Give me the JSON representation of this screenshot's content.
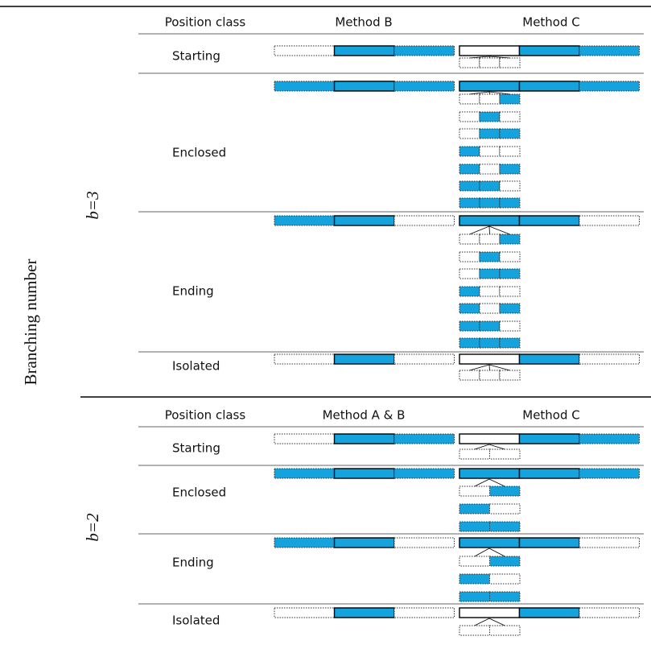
{
  "axis_label": "Branching number",
  "sections": [
    {
      "label": "b=3",
      "header": {
        "position_class": "Position class",
        "method_1": "Method B",
        "method_2": "Method C"
      },
      "rows": [
        "Starting",
        "Enclosed",
        "Ending",
        "Isolated"
      ]
    },
    {
      "label": "b=2",
      "header": {
        "position_class": "Position class",
        "method_1": "Method A & B",
        "method_2": "Method C"
      },
      "rows": [
        "Starting",
        "Enclosed",
        "Ending",
        "Isolated"
      ]
    }
  ]
}
